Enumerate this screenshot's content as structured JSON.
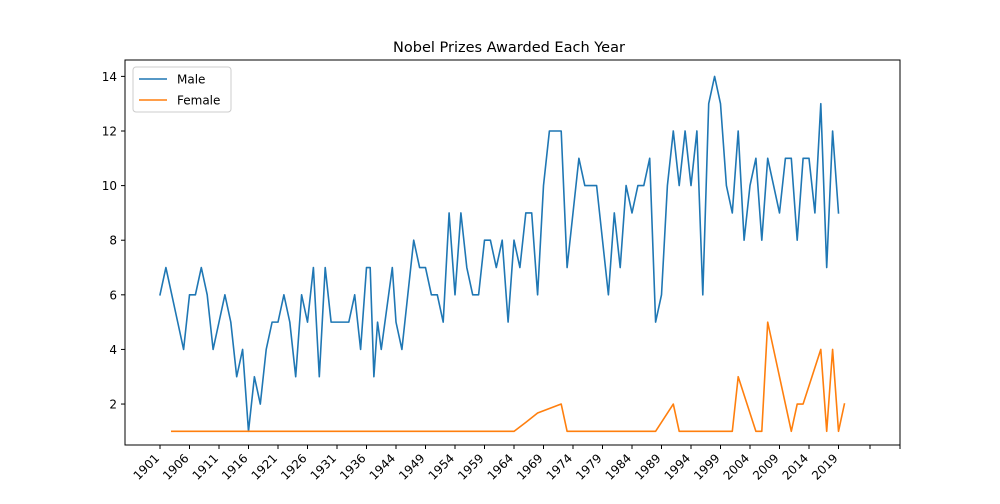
{
  "chart_data": {
    "type": "line",
    "title": "Nobel Prizes Awarded Each Year",
    "xlabel": "",
    "ylabel": "",
    "xlim": [
      1895,
      2025
    ],
    "ylim": [
      0.5,
      14.6
    ],
    "x_ticks": [
      1901,
      1906,
      1911,
      1916,
      1921,
      1926,
      1931,
      1936,
      1944,
      1949,
      1954,
      1959,
      1964,
      1969,
      1974,
      1979,
      1984,
      1989,
      1994,
      1999,
      2004,
      2009,
      2014,
      2019,
      "",
      ""
    ],
    "y_ticks": [
      2,
      4,
      6,
      8,
      10,
      12,
      14
    ],
    "grid": false,
    "legend_position": "upper-left",
    "series": [
      {
        "name": "Male",
        "color": "#1f77b4",
        "points": [
          [
            1901,
            6
          ],
          [
            1902,
            7
          ],
          [
            1903,
            6
          ],
          [
            1904,
            5
          ],
          [
            1905,
            4
          ],
          [
            1906,
            6
          ],
          [
            1907,
            6
          ],
          [
            1908,
            7
          ],
          [
            1909,
            6
          ],
          [
            1910,
            4
          ],
          [
            1911,
            5
          ],
          [
            1912,
            6
          ],
          [
            1913,
            5
          ],
          [
            1914,
            3
          ],
          [
            1915,
            4
          ],
          [
            1916,
            1
          ],
          [
            1917,
            3
          ],
          [
            1918,
            2
          ],
          [
            1919,
            4
          ],
          [
            1920,
            5
          ],
          [
            1921,
            5
          ],
          [
            1922,
            6
          ],
          [
            1923,
            5
          ],
          [
            1924,
            3
          ],
          [
            1925,
            6
          ],
          [
            1926,
            5
          ],
          [
            1927,
            7
          ],
          [
            1928,
            3
          ],
          [
            1929,
            7
          ],
          [
            1930,
            5
          ],
          [
            1931,
            5
          ],
          [
            1932,
            5
          ],
          [
            1933,
            5
          ],
          [
            1934,
            6
          ],
          [
            1935,
            4
          ],
          [
            1936,
            7
          ],
          [
            1937,
            7
          ],
          [
            1938,
            3
          ],
          [
            1939,
            5
          ],
          [
            1940,
            4
          ],
          [
            1943,
            7
          ],
          [
            1944,
            5
          ],
          [
            1945,
            4
          ],
          [
            1946,
            6
          ],
          [
            1947,
            8
          ],
          [
            1948,
            7
          ],
          [
            1949,
            7
          ],
          [
            1950,
            6
          ],
          [
            1951,
            6
          ],
          [
            1952,
            5
          ],
          [
            1953,
            9
          ],
          [
            1954,
            6
          ],
          [
            1955,
            9
          ],
          [
            1956,
            7
          ],
          [
            1957,
            6
          ],
          [
            1958,
            6
          ],
          [
            1959,
            8
          ],
          [
            1960,
            8
          ],
          [
            1961,
            7
          ],
          [
            1962,
            8
          ],
          [
            1963,
            5
          ],
          [
            1964,
            8
          ],
          [
            1965,
            7
          ],
          [
            1966,
            9
          ],
          [
            1967,
            9
          ],
          [
            1968,
            6
          ],
          [
            1969,
            10
          ],
          [
            1970,
            12
          ],
          [
            1971,
            12
          ],
          [
            1972,
            12
          ],
          [
            1973,
            7
          ],
          [
            1974,
            9
          ],
          [
            1975,
            11
          ],
          [
            1976,
            10
          ],
          [
            1977,
            10
          ],
          [
            1978,
            10
          ],
          [
            1979,
            8
          ],
          [
            1980,
            6
          ],
          [
            1981,
            9
          ],
          [
            1982,
            7
          ],
          [
            1983,
            10
          ],
          [
            1984,
            9
          ],
          [
            1985,
            10
          ],
          [
            1986,
            10
          ],
          [
            1987,
            11
          ],
          [
            1988,
            5
          ],
          [
            1989,
            6
          ],
          [
            1990,
            10
          ],
          [
            1991,
            12
          ],
          [
            1992,
            10
          ],
          [
            1993,
            12
          ],
          [
            1994,
            10
          ],
          [
            1995,
            12
          ],
          [
            1996,
            6
          ],
          [
            1997,
            13
          ],
          [
            1998,
            14
          ],
          [
            1999,
            13
          ],
          [
            2000,
            10
          ],
          [
            2001,
            9
          ],
          [
            2002,
            12
          ],
          [
            2003,
            8
          ],
          [
            2004,
            10
          ],
          [
            2005,
            11
          ],
          [
            2006,
            8
          ],
          [
            2007,
            11
          ],
          [
            2008,
            10
          ],
          [
            2009,
            9
          ],
          [
            2010,
            11
          ],
          [
            2011,
            11
          ],
          [
            2012,
            8
          ],
          [
            2013,
            11
          ],
          [
            2014,
            11
          ],
          [
            2015,
            9
          ],
          [
            2016,
            13
          ],
          [
            2017,
            7
          ],
          [
            2018,
            12
          ],
          [
            2019,
            9
          ]
        ]
      },
      {
        "name": "Female",
        "color": "#ff7f0e",
        "points": [
          [
            1903,
            1
          ],
          [
            1905,
            1
          ],
          [
            1909,
            1
          ],
          [
            1911,
            1
          ],
          [
            1926,
            1
          ],
          [
            1931,
            1
          ],
          [
            1935,
            1
          ],
          [
            1938,
            1
          ],
          [
            1945,
            1
          ],
          [
            1946,
            1
          ],
          [
            1947,
            1
          ],
          [
            1963,
            1
          ],
          [
            1964,
            1
          ],
          [
            1966,
            1.33
          ],
          [
            1968,
            1.67
          ],
          [
            1972,
            2
          ],
          [
            1973,
            1
          ],
          [
            1975,
            1
          ],
          [
            1981,
            1
          ],
          [
            1985,
            1
          ],
          [
            1988,
            1
          ],
          [
            1991,
            2
          ],
          [
            1992,
            1
          ],
          [
            1995,
            1
          ],
          [
            1997,
            1
          ],
          [
            2000,
            1
          ],
          [
            2001,
            1
          ],
          [
            2002,
            3
          ],
          [
            2005,
            1
          ],
          [
            2006,
            1
          ],
          [
            2007,
            5
          ],
          [
            2011,
            1
          ],
          [
            2012,
            2
          ],
          [
            2013,
            2
          ],
          [
            2016,
            4
          ],
          [
            2017,
            1
          ],
          [
            2018,
            4
          ],
          [
            2019,
            1
          ],
          [
            2020,
            2
          ]
        ]
      }
    ]
  }
}
